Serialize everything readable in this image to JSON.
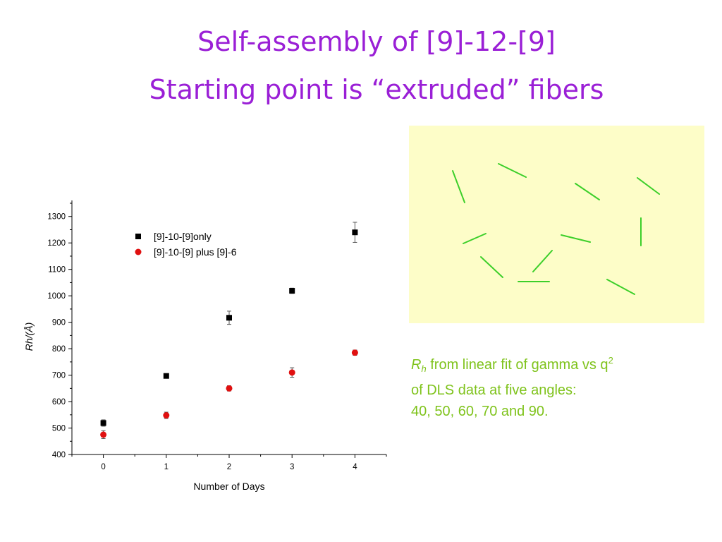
{
  "slide": {
    "title_line1": "Self-assembly of [9]-12-[9]",
    "title_line2": "Starting point is “extruded” fibers"
  },
  "caption": {
    "rh_symbol": "R",
    "rh_subscript": "h",
    "line1_text": " from linear fit of gamma vs q",
    "line1_superscript": "2",
    "line2": "of DLS data at five angles:",
    "line3": "40, 50, 60, 70 and 90."
  },
  "colors": {
    "title": "#9a1fd6",
    "caption": "#7fc31c",
    "panel_bg": "#fdfdc8",
    "fiber": "#3ccf2a",
    "series_only": "#000000",
    "series_plus": "#e01010"
  },
  "chart_data": {
    "type": "scatter",
    "title": "",
    "xlabel": "Number of Days",
    "ylabel": "Rh/(Å)",
    "xlim": [
      -0.5,
      4.5
    ],
    "ylim": [
      400,
      1350
    ],
    "x_ticks": [
      0,
      1,
      2,
      3,
      4
    ],
    "y_ticks": [
      400,
      500,
      600,
      700,
      800,
      900,
      1000,
      1100,
      1200,
      1300
    ],
    "legend_position": "top-left",
    "grid": false,
    "error_bars": true,
    "series": [
      {
        "name": "[9]-10-[9]only",
        "marker": "square",
        "color": "#000000",
        "x": [
          0,
          1,
          2,
          3,
          4
        ],
        "y": [
          519,
          697,
          917,
          1019,
          1240
        ],
        "error": [
          12,
          5,
          25,
          10,
          38
        ]
      },
      {
        "name": "[9]-10-[9] plus [9]-6",
        "marker": "circle",
        "color": "#e01010",
        "x": [
          0,
          1,
          2,
          3,
          4
        ],
        "y": [
          475,
          548,
          650,
          710,
          785
        ],
        "error": [
          15,
          12,
          10,
          18,
          10
        ]
      }
    ]
  }
}
